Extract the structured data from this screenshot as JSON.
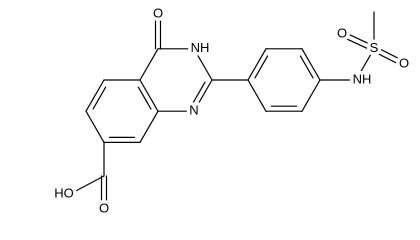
{
  "atoms": [
    {
      "label": "O"
    },
    {
      "label": "NH"
    },
    {
      "label": "N"
    },
    {
      "label": "HO"
    },
    {
      "label": "O"
    },
    {
      "label": "NH"
    },
    {
      "label": "S"
    },
    {
      "label": "O"
    },
    {
      "label": "O"
    }
  ]
}
